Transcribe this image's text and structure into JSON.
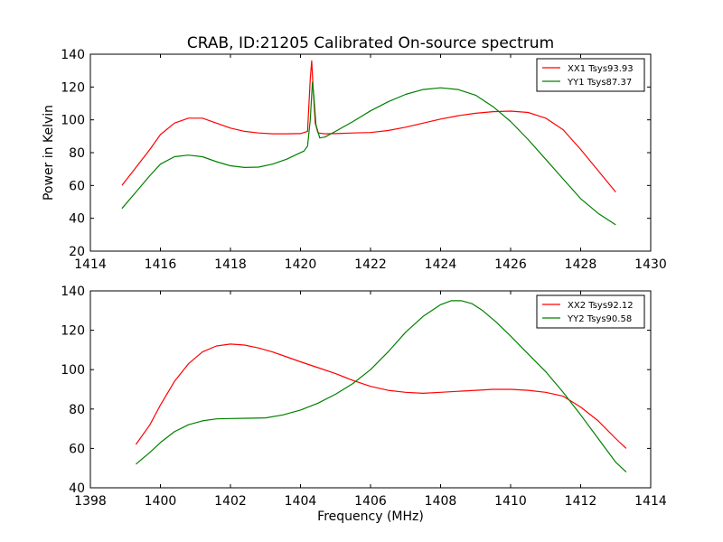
{
  "chart_data": [
    {
      "type": "line",
      "title": "CRAB, ID:21205 Calibrated On-source spectrum",
      "xlabel": "",
      "ylabel": "Power in Kelvin",
      "xlim": [
        1414,
        1430
      ],
      "ylim": [
        20,
        140
      ],
      "xticks": [
        "1414",
        "1416",
        "1418",
        "1420",
        "1422",
        "1424",
        "1426",
        "1428",
        "1430"
      ],
      "yticks": [
        "20",
        "40",
        "60",
        "80",
        "100",
        "120",
        "140"
      ],
      "legend_position": "top-right",
      "grid": false,
      "series": [
        {
          "name": "XX1 Tsys93.93",
          "color": "#ff0000",
          "x": [
            1414.9,
            1415.3,
            1415.7,
            1416.0,
            1416.4,
            1416.8,
            1417.2,
            1417.6,
            1418.0,
            1418.4,
            1418.8,
            1419.2,
            1419.6,
            1420.0,
            1420.2,
            1420.28,
            1420.32,
            1420.36,
            1420.42,
            1420.5,
            1420.7,
            1421.0,
            1421.5,
            1422.0,
            1422.5,
            1423.0,
            1423.5,
            1424.0,
            1424.5,
            1425.0,
            1425.5,
            1426.0,
            1426.5,
            1427.0,
            1427.5,
            1428.0,
            1428.5,
            1429.0
          ],
          "values": [
            60,
            71,
            82,
            91,
            98,
            101,
            101,
            98,
            95,
            93,
            92,
            91.5,
            91.5,
            91.6,
            93,
            125,
            136,
            120,
            98,
            92,
            91.5,
            91.6,
            92,
            92.3,
            93.5,
            95.5,
            98,
            100.5,
            102.5,
            104,
            105,
            105.3,
            104.5,
            101,
            94,
            82,
            69,
            56
          ]
        },
        {
          "name": "YY1 Tsys87.37",
          "color": "#008000",
          "x": [
            1414.9,
            1415.3,
            1415.7,
            1416.0,
            1416.4,
            1416.8,
            1417.2,
            1417.6,
            1418.0,
            1418.4,
            1418.8,
            1419.2,
            1419.6,
            1419.9,
            1420.1,
            1420.2,
            1420.28,
            1420.34,
            1420.38,
            1420.44,
            1420.55,
            1420.7,
            1421.0,
            1421.5,
            1422.0,
            1422.5,
            1423.0,
            1423.5,
            1424.0,
            1424.5,
            1425.0,
            1425.5,
            1426.0,
            1426.5,
            1427.0,
            1427.5,
            1428.0,
            1428.5,
            1429.0
          ],
          "values": [
            46,
            56,
            66,
            73,
            77.5,
            78.5,
            77.5,
            74.5,
            72,
            71,
            71.2,
            73,
            76,
            79,
            81,
            84,
            100,
            123,
            115,
            97,
            89,
            89.5,
            93,
            99,
            105.5,
            111,
            115.5,
            118.5,
            119.5,
            118.5,
            115,
            108,
            99,
            88,
            76,
            64,
            52,
            43,
            36
          ]
        }
      ]
    },
    {
      "type": "line",
      "title": "",
      "xlabel": "Frequency (MHz)",
      "ylabel": "",
      "xlim": [
        1398,
        1414
      ],
      "ylim": [
        40,
        140
      ],
      "xticks": [
        "1398",
        "1400",
        "1402",
        "1404",
        "1406",
        "1408",
        "1410",
        "1412",
        "1414"
      ],
      "yticks": [
        "40",
        "60",
        "80",
        "100",
        "120",
        "140"
      ],
      "legend_position": "top-right",
      "grid": false,
      "series": [
        {
          "name": "XX2 Tsys92.12",
          "color": "#ff0000",
          "x": [
            1399.3,
            1399.7,
            1400.0,
            1400.4,
            1400.8,
            1401.2,
            1401.6,
            1402.0,
            1402.4,
            1402.8,
            1403.2,
            1403.6,
            1404.0,
            1404.5,
            1405.0,
            1405.5,
            1406.0,
            1406.5,
            1407.0,
            1407.5,
            1408.0,
            1408.5,
            1409.0,
            1409.5,
            1410.0,
            1410.5,
            1411.0,
            1411.5,
            1412.0,
            1412.5,
            1413.0,
            1413.3
          ],
          "values": [
            62,
            72,
            82,
            94,
            103,
            109,
            112,
            113,
            112.5,
            111,
            109,
            106.5,
            104,
            101,
            98,
            94.5,
            91.5,
            89.5,
            88.5,
            88,
            88.5,
            89,
            89.5,
            90,
            90,
            89.5,
            88.5,
            86.5,
            81,
            74,
            65,
            60
          ]
        },
        {
          "name": "YY2 Tsys90.58",
          "color": "#008000",
          "x": [
            1399.3,
            1399.7,
            1400.0,
            1400.4,
            1400.8,
            1401.2,
            1401.6,
            1402.0,
            1402.5,
            1403.0,
            1403.5,
            1404.0,
            1404.5,
            1405.0,
            1405.5,
            1406.0,
            1406.5,
            1407.0,
            1407.5,
            1408.0,
            1408.3,
            1408.6,
            1408.9,
            1409.2,
            1409.6,
            1410.0,
            1410.5,
            1411.0,
            1411.5,
            1412.0,
            1412.5,
            1413.0,
            1413.3
          ],
          "values": [
            52,
            58,
            63,
            68.5,
            72,
            74,
            75,
            75.2,
            75.3,
            75.5,
            77,
            79.5,
            83,
            87.5,
            93,
            100,
            109,
            119,
            127,
            133,
            135,
            135,
            133.5,
            130,
            124,
            117,
            108,
            99,
            88.5,
            77,
            65,
            53,
            48
          ]
        }
      ]
    }
  ]
}
